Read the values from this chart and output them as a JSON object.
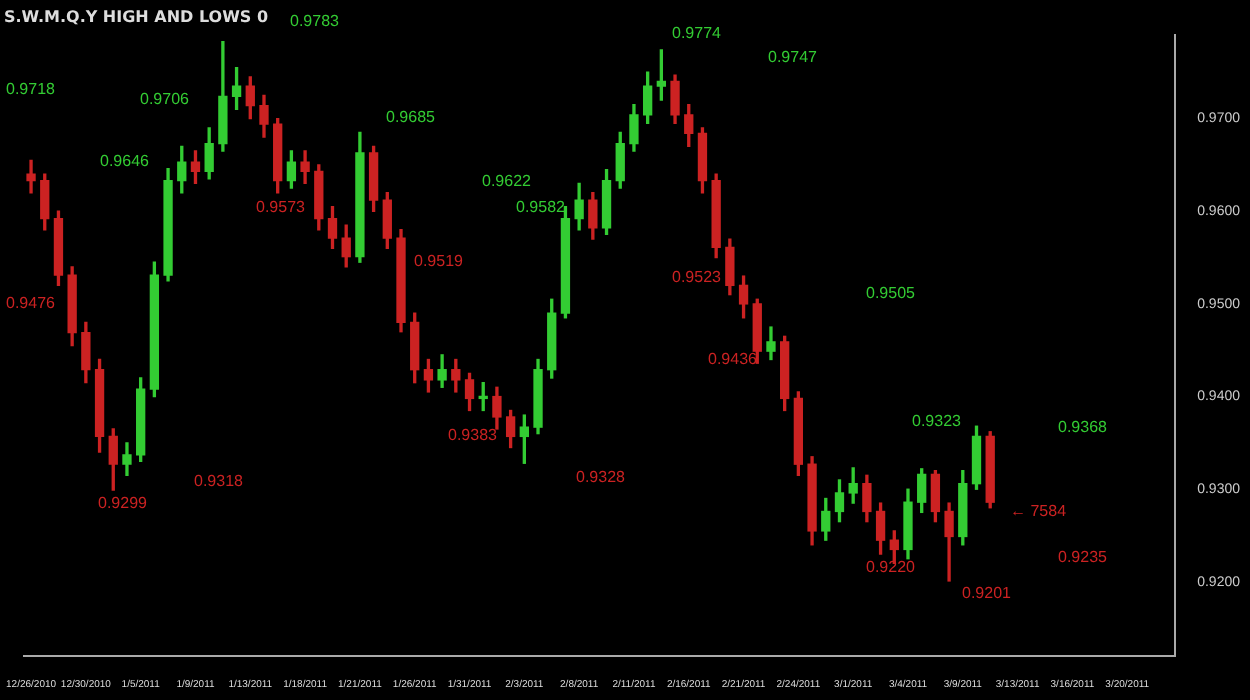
{
  "chart_data": {
    "type": "candlestick",
    "title": "S.W.M.Q.Y HIGH AND LOWS 0",
    "categories": [
      "12/26/2010",
      null,
      null,
      null,
      "12/30/2010",
      null,
      null,
      null,
      "1/5/2011",
      null,
      null,
      null,
      "1/9/2011",
      null,
      null,
      null,
      "1/13/2011",
      null,
      null,
      null,
      "1/18/2011",
      null,
      null,
      null,
      "1/21/2011",
      null,
      null,
      null,
      "1/26/2011",
      null,
      null,
      null,
      "1/31/2011",
      null,
      null,
      null,
      "2/3/2011",
      null,
      null,
      null,
      "2/8/2011",
      null,
      null,
      null,
      "2/11/2011",
      null,
      null,
      null,
      "2/16/2011",
      null,
      null,
      null,
      "2/21/2011",
      null,
      null,
      null,
      "2/24/2011",
      null,
      null,
      null,
      "3/1/2011",
      null,
      null,
      null,
      "3/4/2011",
      null,
      null,
      null,
      "3/9/2011",
      null,
      null,
      null,
      "3/13/2011",
      null,
      null,
      null,
      "3/16/2011",
      null,
      null,
      null,
      "3/20/2011",
      null,
      null,
      null
    ],
    "ohlc": [
      [
        0.964,
        0.9655,
        0.962,
        0.9633
      ],
      [
        0.9633,
        0.964,
        0.958,
        0.9592
      ],
      [
        0.9592,
        0.96,
        0.952,
        0.9531
      ],
      [
        0.9531,
        0.954,
        0.9455,
        0.9469
      ],
      [
        0.9469,
        0.948,
        0.9415,
        0.9429
      ],
      [
        0.9429,
        0.944,
        0.934,
        0.9357
      ],
      [
        0.9357,
        0.9365,
        0.9299,
        0.9327
      ],
      [
        0.9327,
        0.935,
        0.9315,
        0.9337
      ],
      [
        0.9337,
        0.942,
        0.933,
        0.9408
      ],
      [
        0.9408,
        0.9545,
        0.94,
        0.9531
      ],
      [
        0.9531,
        0.9646,
        0.9525,
        0.9633
      ],
      [
        0.9633,
        0.967,
        0.962,
        0.9653
      ],
      [
        0.9653,
        0.9665,
        0.963,
        0.9643
      ],
      [
        0.9643,
        0.969,
        0.9635,
        0.9673
      ],
      [
        0.9673,
        0.9783,
        0.9665,
        0.9724
      ],
      [
        0.9724,
        0.9755,
        0.971,
        0.9735
      ],
      [
        0.9735,
        0.9745,
        0.97,
        0.9714
      ],
      [
        0.9714,
        0.9725,
        0.968,
        0.9694
      ],
      [
        0.9694,
        0.97,
        0.962,
        0.9633
      ],
      [
        0.9633,
        0.9665,
        0.9625,
        0.9653
      ],
      [
        0.9653,
        0.9665,
        0.963,
        0.9643
      ],
      [
        0.9643,
        0.965,
        0.958,
        0.9592
      ],
      [
        0.9592,
        0.9605,
        0.956,
        0.9571
      ],
      [
        0.9571,
        0.9585,
        0.954,
        0.9551
      ],
      [
        0.9551,
        0.9685,
        0.9545,
        0.9663
      ],
      [
        0.9663,
        0.967,
        0.96,
        0.9612
      ],
      [
        0.9612,
        0.962,
        0.956,
        0.9571
      ],
      [
        0.9571,
        0.958,
        0.947,
        0.948
      ],
      [
        0.948,
        0.949,
        0.9415,
        0.9429
      ],
      [
        0.9429,
        0.944,
        0.9405,
        0.9418
      ],
      [
        0.9418,
        0.9445,
        0.941,
        0.9429
      ],
      [
        0.9429,
        0.944,
        0.9405,
        0.9418
      ],
      [
        0.9418,
        0.9425,
        0.9385,
        0.9398
      ],
      [
        0.9398,
        0.9415,
        0.9385,
        0.94
      ],
      [
        0.94,
        0.941,
        0.9365,
        0.9378
      ],
      [
        0.9378,
        0.9385,
        0.9345,
        0.9357
      ],
      [
        0.9357,
        0.938,
        0.9328,
        0.9367
      ],
      [
        0.9367,
        0.944,
        0.936,
        0.9429
      ],
      [
        0.9429,
        0.9505,
        0.942,
        0.949
      ],
      [
        0.949,
        0.9605,
        0.9485,
        0.9592
      ],
      [
        0.9592,
        0.963,
        0.958,
        0.9612
      ],
      [
        0.9612,
        0.962,
        0.957,
        0.9582
      ],
      [
        0.9582,
        0.9645,
        0.9575,
        0.9633
      ],
      [
        0.9633,
        0.9685,
        0.9625,
        0.9673
      ],
      [
        0.9673,
        0.9715,
        0.9665,
        0.9704
      ],
      [
        0.9704,
        0.975,
        0.9695,
        0.9735
      ],
      [
        0.9735,
        0.9774,
        0.972,
        0.974
      ],
      [
        0.974,
        0.9747,
        0.9695,
        0.9704
      ],
      [
        0.9704,
        0.9715,
        0.967,
        0.9684
      ],
      [
        0.9684,
        0.969,
        0.962,
        0.9633
      ],
      [
        0.9633,
        0.964,
        0.955,
        0.9561
      ],
      [
        0.9561,
        0.957,
        0.951,
        0.952
      ],
      [
        0.952,
        0.953,
        0.9485,
        0.95
      ],
      [
        0.95,
        0.9505,
        0.9436,
        0.9449
      ],
      [
        0.9449,
        0.9475,
        0.944,
        0.9459
      ],
      [
        0.9459,
        0.9465,
        0.9385,
        0.9398
      ],
      [
        0.9398,
        0.9405,
        0.9315,
        0.9327
      ],
      [
        0.9327,
        0.9335,
        0.924,
        0.9255
      ],
      [
        0.9255,
        0.929,
        0.9245,
        0.9276
      ],
      [
        0.9276,
        0.931,
        0.9265,
        0.9296
      ],
      [
        0.9296,
        0.9323,
        0.9285,
        0.9306
      ],
      [
        0.9306,
        0.9315,
        0.9265,
        0.9276
      ],
      [
        0.9276,
        0.9285,
        0.923,
        0.9245
      ],
      [
        0.9245,
        0.9255,
        0.922,
        0.9235
      ],
      [
        0.9235,
        0.93,
        0.9225,
        0.9286
      ],
      [
        0.9286,
        0.9322,
        0.9275,
        0.9316
      ],
      [
        0.9316,
        0.932,
        0.9265,
        0.9276
      ],
      [
        0.9276,
        0.9285,
        0.9201,
        0.9249
      ],
      [
        0.9249,
        0.932,
        0.924,
        0.9306
      ],
      [
        0.9306,
        0.9368,
        0.93,
        0.9357
      ],
      [
        0.9357,
        0.9362,
        0.928,
        0.9286
      ],
      null,
      null,
      null,
      null,
      null,
      null,
      null,
      null,
      null,
      null,
      null,
      null,
      null
    ],
    "colors": [
      "#cc2222",
      "#cc2222",
      "#cc2222",
      "#cc2222",
      "#cc2222",
      "#cc2222",
      "#cc2222",
      "#33cc33",
      "#33cc33",
      "#33cc33",
      "#33cc33",
      "#33cc33",
      "#cc2222",
      "#33cc33",
      "#33cc33",
      "#33cc33",
      "#cc2222",
      "#cc2222",
      "#cc2222",
      "#33cc33",
      "#cc2222",
      "#cc2222",
      "#cc2222",
      "#cc2222",
      "#33cc33",
      "#cc2222",
      "#cc2222",
      "#cc2222",
      "#cc2222",
      "#cc2222",
      "#33cc33",
      "#cc2222",
      "#cc2222",
      "#33cc33",
      "#cc2222",
      "#cc2222",
      "#33cc33",
      "#33cc33",
      "#33cc33",
      "#33cc33",
      "#33cc33",
      "#cc2222",
      "#33cc33",
      "#33cc33",
      "#33cc33",
      "#33cc33",
      "#33cc33",
      "#cc2222",
      "#cc2222",
      "#cc2222",
      "#cc2222",
      "#cc2222",
      "#cc2222",
      "#cc2222",
      "#33cc33",
      "#cc2222",
      "#cc2222",
      "#cc2222",
      "#33cc33",
      "#33cc33",
      "#33cc33",
      "#cc2222",
      "#cc2222",
      "#cc2222",
      "#33cc33",
      "#33cc33",
      "#cc2222",
      "#cc2222",
      "#33cc33",
      "#33cc33",
      "#cc2222",
      null,
      null,
      null,
      null,
      null,
      null,
      null,
      null,
      null,
      null,
      null,
      null,
      null
    ],
    "ylim": [
      0.912,
      0.979
    ],
    "yticks": [
      {
        "value": 0.92,
        "label": "0.9200"
      },
      {
        "value": 0.93,
        "label": "0.9300"
      },
      {
        "value": 0.94,
        "label": "0.9400"
      },
      {
        "value": 0.95,
        "label": "0.9500"
      },
      {
        "value": 0.96,
        "label": "0.9600"
      },
      {
        "value": 0.97,
        "label": "0.9700"
      }
    ],
    "annotations": [
      "0.9718",
      "0.9646",
      "0.9476",
      "0.9299",
      "0.9318",
      "0.9783",
      "0.9706",
      "0.9685",
      "0.9573",
      "0.9519",
      "0.9622",
      "0.9383",
      "0.9328",
      "0.9582",
      "0.9774",
      "0.9747",
      "0.9523",
      "0.9505",
      "0.9436",
      "0.9220",
      "0.9323",
      "0.9201",
      "0.9368",
      "0.9235",
      "← 7584"
    ],
    "grid": false,
    "legend": false
  }
}
